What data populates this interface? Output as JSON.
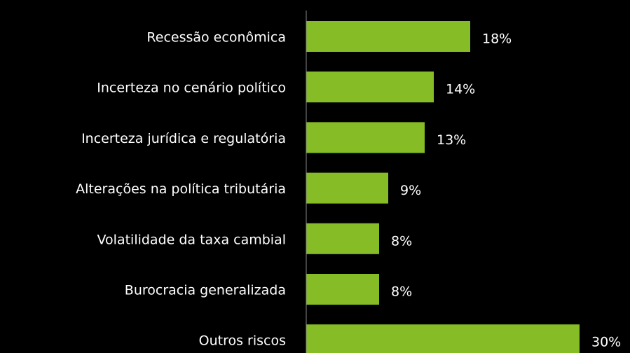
{
  "chart_data": {
    "type": "bar",
    "orientation": "horizontal",
    "categories": [
      "Recessão econômica",
      "Incerteza no cenário político",
      "Incerteza jurídica e regulatória",
      "Alterações na política tributária",
      "Volatilidade da taxa cambial",
      "Burocracia generalizada",
      "Outros riscos"
    ],
    "values": [
      18,
      14,
      13,
      9,
      8,
      8,
      30
    ],
    "value_labels": [
      "18%",
      "14%",
      "13%",
      "9%",
      "8%",
      "8%",
      "30%"
    ],
    "color": "#86bc25"
  }
}
